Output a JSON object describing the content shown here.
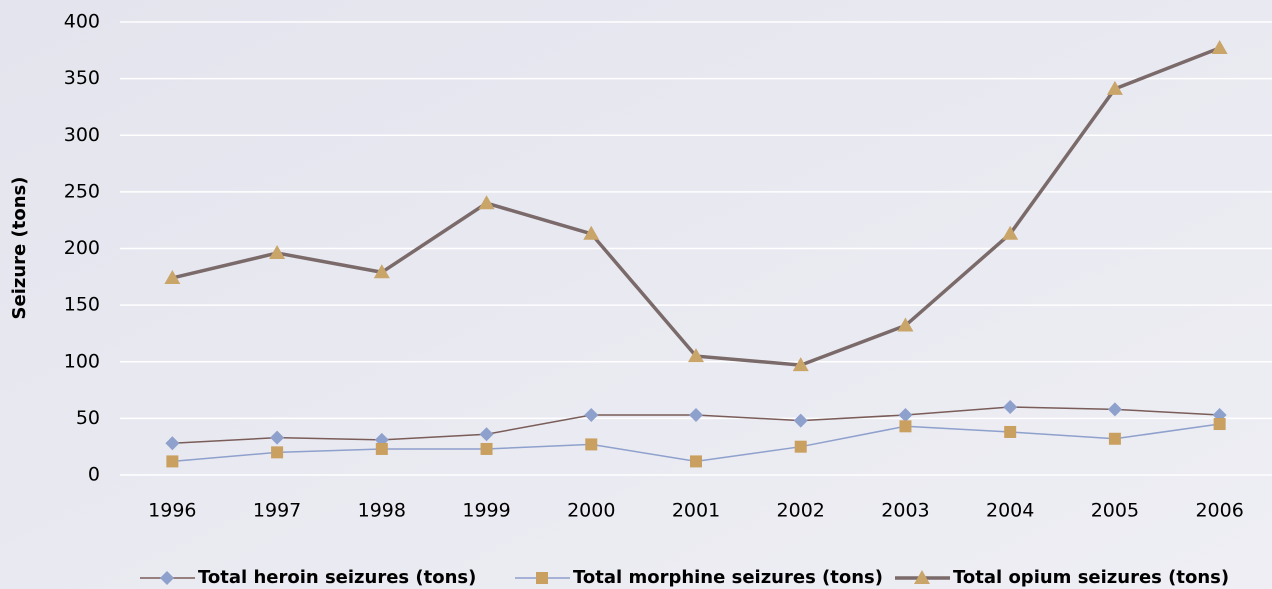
{
  "chart_data": {
    "type": "line",
    "y_label": "Seizure (tons)",
    "categories": [
      "1996",
      "1997",
      "1998",
      "1999",
      "2000",
      "2001",
      "2002",
      "2003",
      "2004",
      "2005",
      "2006"
    ],
    "series": [
      {
        "name": "Total heroin seizures (tons)",
        "color": "#7a5c58",
        "marker_color": "#8ea0cc",
        "marker": "diamond",
        "line_width": 1.5,
        "values": [
          28,
          33,
          31,
          36,
          53,
          53,
          48,
          53,
          60,
          58,
          53
        ]
      },
      {
        "name": "Total morphine seizures (tons)",
        "color": "#8ea0cc",
        "marker_color": "#c9a060",
        "marker": "square",
        "line_width": 1.5,
        "values": [
          12,
          20,
          23,
          23,
          27,
          12,
          25,
          43,
          38,
          32,
          45
        ]
      },
      {
        "name": "Total opium seizures (tons)",
        "color": "#7b6a6a",
        "marker_color": "#c9a56a",
        "marker": "triangle",
        "line_width": 3.5,
        "values": [
          174,
          196,
          179,
          240,
          213,
          105,
          97,
          132,
          213,
          341,
          377
        ]
      }
    ],
    "ylim": [
      0,
      400
    ],
    "yticks": [
      0,
      50,
      100,
      150,
      200,
      250,
      300,
      350,
      400
    ],
    "grid": true
  }
}
